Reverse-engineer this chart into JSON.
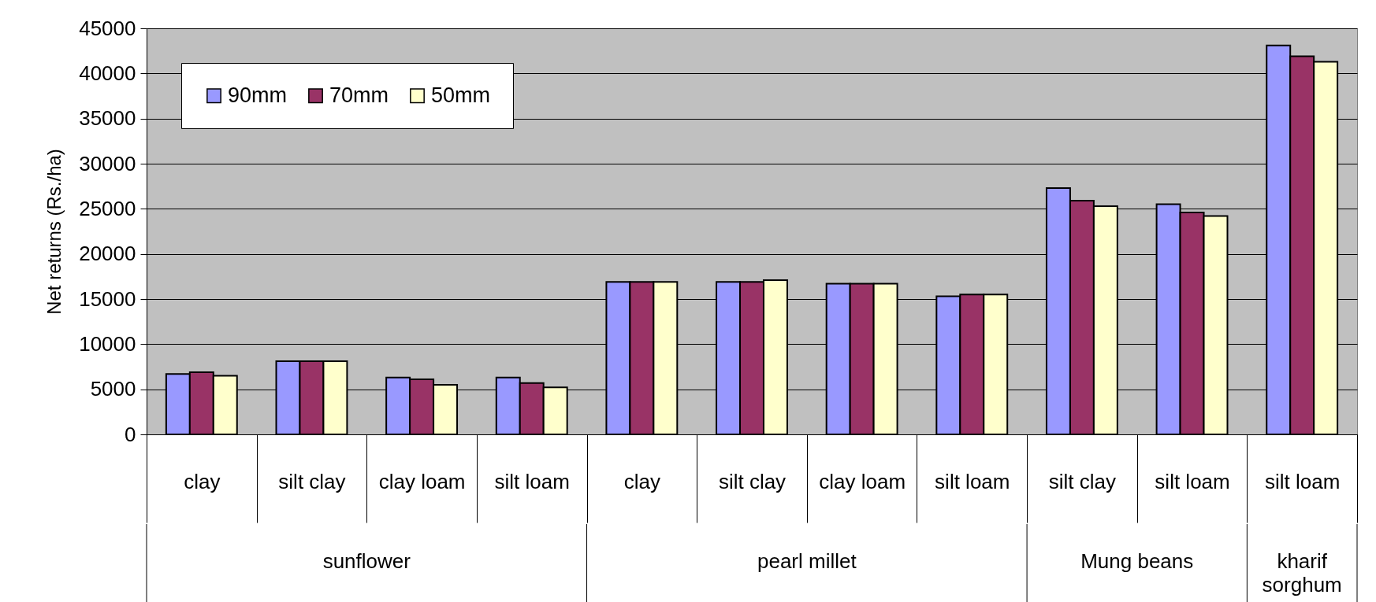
{
  "chart_data": {
    "type": "bar",
    "ylabel": "Net returns (Rs./ha)",
    "categories": [
      "clay",
      "silt clay",
      "clay loam",
      "silt loam",
      "clay",
      "silt clay",
      "clay loam",
      "silt loam",
      "silt clay",
      "silt loam",
      "silt loam"
    ],
    "series": [
      {
        "name": "90mm",
        "color": "#9999ff",
        "values": [
          6700,
          8100,
          6300,
          6300,
          16900,
          16900,
          16700,
          15300,
          27300,
          25500,
          43100
        ]
      },
      {
        "name": "70mm",
        "color": "#993366",
        "values": [
          6900,
          8100,
          6100,
          5700,
          16900,
          16900,
          16700,
          15500,
          25900,
          24600,
          41900
        ]
      },
      {
        "name": "50mm",
        "color": "#ffffcc",
        "values": [
          6500,
          8100,
          5500,
          5200,
          16900,
          17100,
          16700,
          15500,
          25300,
          24200,
          41300
        ]
      }
    ],
    "annotations": [
      "sunflower",
      "pearl millet",
      "Mung beans",
      "kharif sorghum"
    ],
    "ylim": [
      0,
      45000
    ],
    "yticks": [
      0,
      5000,
      10000,
      15000,
      20000,
      25000,
      30000,
      35000,
      40000,
      45000
    ],
    "grid": "y",
    "legend": "top left"
  }
}
